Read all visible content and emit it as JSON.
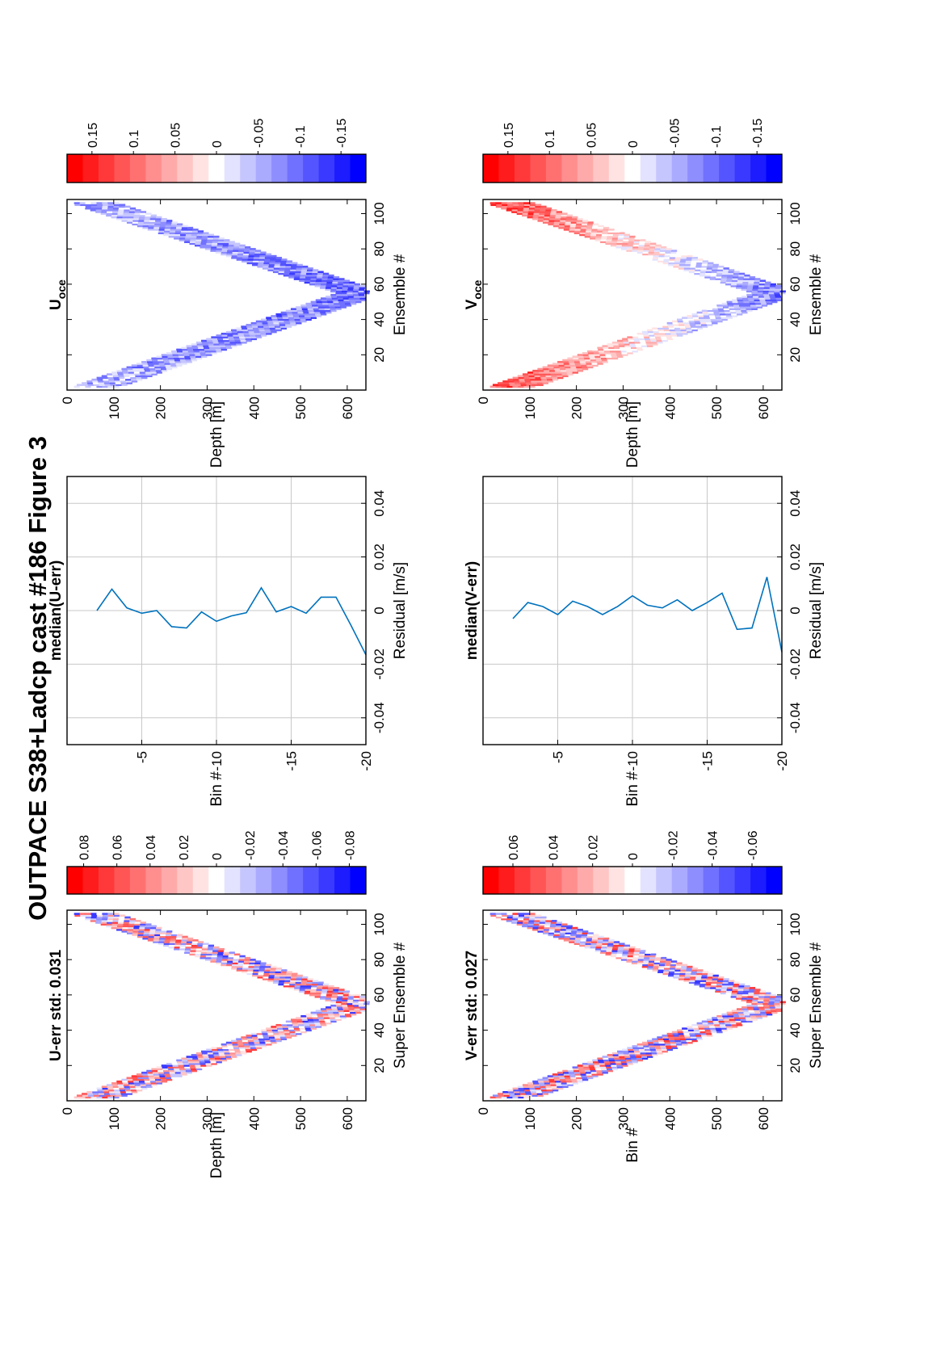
{
  "figure": {
    "title": "OUTPACE S38+Ladcp cast #186  Figure 3"
  },
  "chart_data": [
    {
      "type": "heatmap",
      "title": "U-err std: 0.031",
      "xlabel": "Super Ensemble #",
      "ylabel": "Depth [m]",
      "xlim": [
        0,
        108
      ],
      "ylim": [
        0,
        640
      ],
      "x_ticks": [
        "20",
        "40",
        "60",
        "80",
        "100"
      ],
      "y_ticks": [
        "0",
        "100",
        "200",
        "300",
        "400",
        "500",
        "600"
      ],
      "pattern": "V-shaped track of noisy red/white/blue cells; surface near ensemble 1, max depth ~620 m near ensemble 55",
      "bias": 0,
      "colorbar": {
        "range": [
          -0.09,
          0.09
        ],
        "tick_labels": [
          "0.08",
          "0.06",
          "0.04",
          "0.02",
          "0",
          "-0.02",
          "-0.04",
          "-0.06",
          "-0.08"
        ]
      }
    },
    {
      "type": "line",
      "title": "median(U-err)",
      "xlabel": "Residual [m/s]",
      "ylabel": "Bin #",
      "xlim": [
        -0.05,
        0.05
      ],
      "ylim": [
        -20,
        0
      ],
      "x_ticks": [
        "-0.04",
        "-0.02",
        "0",
        "0.02",
        "0.04"
      ],
      "y_ticks": [
        "-5",
        "-10",
        "-15",
        "-20"
      ],
      "grid": true,
      "series": [
        {
          "bins": [
            -2,
            -3,
            -4,
            -5,
            -6,
            -7,
            -8,
            -9,
            -10,
            -11,
            -12,
            -13,
            -14,
            -15,
            -16,
            -17,
            -18,
            -19,
            -20
          ],
          "values": [
            0.0,
            0.008,
            0.001,
            -0.001,
            0.0,
            -0.006,
            -0.0065,
            -0.0005,
            -0.004,
            -0.002,
            -0.0008,
            0.0085,
            -0.0005,
            0.0015,
            -0.001,
            0.005,
            0.005,
            -0.0055,
            -0.0165
          ]
        }
      ]
    },
    {
      "type": "heatmap",
      "title": "U",
      "title_subscript": "oce",
      "xlabel": "Ensemble #",
      "ylabel": "Depth [m]",
      "xlim": [
        0,
        108
      ],
      "ylim": [
        0,
        640
      ],
      "x_ticks": [
        "20",
        "40",
        "60",
        "80",
        "100"
      ],
      "y_ticks": [
        "0",
        "100",
        "200",
        "300",
        "400",
        "500",
        "600"
      ],
      "pattern": "V-shaped track dominated by blue (negative) values, strongest near the bottom of the cast",
      "bias": -0.07,
      "colorbar": {
        "range": [
          -0.18,
          0.18
        ],
        "tick_labels": [
          "0.15",
          "0.1",
          "0.05",
          "0",
          "-0.05",
          "-0.1",
          "-0.15"
        ]
      }
    },
    {
      "type": "heatmap",
      "title": "V-err std: 0.027",
      "xlabel": "Super Ensemble #",
      "ylabel": "Bin #",
      "xlim": [
        0,
        108
      ],
      "ylim": [
        0,
        640
      ],
      "x_ticks": [
        "20",
        "40",
        "60",
        "80",
        "100"
      ],
      "y_ticks": [
        "0",
        "100",
        "200",
        "300",
        "400",
        "500",
        "600"
      ],
      "pattern": "V-shaped track of noisy red/white/blue cells",
      "bias": 0,
      "colorbar": {
        "range": [
          -0.075,
          0.075
        ],
        "tick_labels": [
          "0.06",
          "0.04",
          "0.02",
          "0",
          "-0.02",
          "-0.04",
          "-0.06"
        ]
      }
    },
    {
      "type": "line",
      "title": "median(V-err)",
      "xlabel": "Residual [m/s]",
      "ylabel": "Bin #",
      "xlim": [
        -0.05,
        0.05
      ],
      "ylim": [
        -20,
        0
      ],
      "x_ticks": [
        "-0.04",
        "-0.02",
        "0",
        "0.02",
        "0.04"
      ],
      "y_ticks": [
        "-5",
        "-10",
        "-15",
        "-20"
      ],
      "grid": true,
      "series": [
        {
          "bins": [
            -2,
            -3,
            -4,
            -5,
            -6,
            -7,
            -8,
            -9,
            -10,
            -11,
            -12,
            -13,
            -14,
            -15,
            -16,
            -17,
            -18,
            -19,
            -20
          ],
          "values": [
            -0.003,
            0.003,
            0.0015,
            -0.0015,
            0.0035,
            0.0015,
            -0.0015,
            0.0015,
            0.0055,
            0.002,
            0.001,
            0.004,
            0.0,
            0.003,
            0.0065,
            -0.007,
            -0.0065,
            0.0125,
            -0.0155
          ]
        }
      ]
    },
    {
      "type": "heatmap",
      "title": "V",
      "title_subscript": "oce",
      "xlabel": "Ensemble #",
      "ylabel": "Depth [m]",
      "xlim": [
        0,
        108
      ],
      "ylim": [
        0,
        640
      ],
      "x_ticks": [
        "20",
        "40",
        "60",
        "80",
        "100"
      ],
      "y_ticks": [
        "0",
        "100",
        "200",
        "300",
        "400",
        "500",
        "600"
      ],
      "pattern": "V-shaped track; red (positive) in upper 300 m, pale/blue near the bottom",
      "bias": 0.06,
      "colorbar": {
        "range": [
          -0.18,
          0.18
        ],
        "tick_labels": [
          "0.15",
          "0.1",
          "0.05",
          "0",
          "-0.05",
          "-0.1",
          "-0.15"
        ]
      }
    }
  ]
}
